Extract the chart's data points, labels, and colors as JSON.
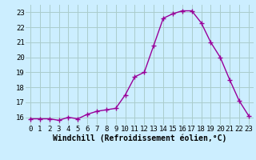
{
  "x": [
    0,
    1,
    2,
    3,
    4,
    5,
    6,
    7,
    8,
    9,
    10,
    11,
    12,
    13,
    14,
    15,
    16,
    17,
    18,
    19,
    20,
    21,
    22,
    23
  ],
  "y": [
    15.9,
    15.9,
    15.9,
    15.8,
    16.0,
    15.9,
    16.2,
    16.4,
    16.5,
    16.6,
    17.5,
    18.7,
    19.0,
    20.8,
    22.6,
    22.9,
    23.1,
    23.1,
    22.3,
    21.0,
    20.0,
    18.5,
    17.1,
    16.1
  ],
  "line_color": "#990099",
  "marker": "+",
  "marker_size": 4,
  "marker_lw": 1.0,
  "line_width": 1.0,
  "bg_color": "#cceeff",
  "grid_color": "#aacccc",
  "xlabel": "Windchill (Refroidissement éolien,°C)",
  "xlabel_fontsize": 7,
  "tick_fontsize": 6.5,
  "ylim": [
    15.5,
    23.5
  ],
  "xlim": [
    -0.5,
    23.5
  ],
  "yticks": [
    16,
    17,
    18,
    19,
    20,
    21,
    22,
    23
  ],
  "xticks": [
    0,
    1,
    2,
    3,
    4,
    5,
    6,
    7,
    8,
    9,
    10,
    11,
    12,
    13,
    14,
    15,
    16,
    17,
    18,
    19,
    20,
    21,
    22,
    23
  ]
}
